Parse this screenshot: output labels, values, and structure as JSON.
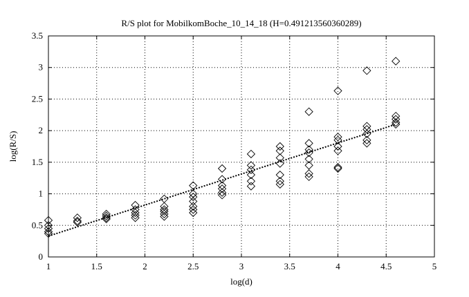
{
  "chart_data": {
    "type": "scatter",
    "title": "R/S plot for MobilkomBoche_10_14_18 (H=0.491213560360289)",
    "xlabel": "log(d)",
    "ylabel": "log(R/S)",
    "xlim": [
      1,
      5
    ],
    "ylim": [
      0,
      3.5
    ],
    "xticks": [
      "1",
      "1.5",
      "2",
      "2.5",
      "3",
      "3.5",
      "4",
      "4.5",
      "5"
    ],
    "yticks": [
      "0",
      "0.5",
      "1",
      "1.5",
      "2",
      "2.5",
      "3",
      "3.5"
    ],
    "grid": true,
    "marker": "diamond",
    "points": [
      [
        1.0,
        0.58
      ],
      [
        1.0,
        0.5
      ],
      [
        1.0,
        0.45
      ],
      [
        1.0,
        0.4
      ],
      [
        1.0,
        0.37
      ],
      [
        1.3,
        0.62
      ],
      [
        1.3,
        0.57
      ],
      [
        1.3,
        0.55
      ],
      [
        1.6,
        0.68
      ],
      [
        1.6,
        0.65
      ],
      [
        1.6,
        0.62
      ],
      [
        1.6,
        0.6
      ],
      [
        1.9,
        0.82
      ],
      [
        1.9,
        0.75
      ],
      [
        1.9,
        0.7
      ],
      [
        1.9,
        0.66
      ],
      [
        1.9,
        0.62
      ],
      [
        2.2,
        0.92
      ],
      [
        2.2,
        0.8
      ],
      [
        2.2,
        0.75
      ],
      [
        2.2,
        0.72
      ],
      [
        2.2,
        0.68
      ],
      [
        2.2,
        0.64
      ],
      [
        2.5,
        1.13
      ],
      [
        2.5,
        1.0
      ],
      [
        2.5,
        0.95
      ],
      [
        2.5,
        0.88
      ],
      [
        2.5,
        0.8
      ],
      [
        2.5,
        0.75
      ],
      [
        2.5,
        0.7
      ],
      [
        2.8,
        1.4
      ],
      [
        2.8,
        1.23
      ],
      [
        2.8,
        1.13
      ],
      [
        2.8,
        1.08
      ],
      [
        2.8,
        1.02
      ],
      [
        2.8,
        0.98
      ],
      [
        3.1,
        1.63
      ],
      [
        3.1,
        1.45
      ],
      [
        3.1,
        1.38
      ],
      [
        3.1,
        1.3
      ],
      [
        3.1,
        1.2
      ],
      [
        3.1,
        1.12
      ],
      [
        3.4,
        1.75
      ],
      [
        3.4,
        1.68
      ],
      [
        3.4,
        1.57
      ],
      [
        3.4,
        1.48
      ],
      [
        3.4,
        1.3
      ],
      [
        3.4,
        1.2
      ],
      [
        3.4,
        1.15
      ],
      [
        3.7,
        2.3
      ],
      [
        3.7,
        1.8
      ],
      [
        3.7,
        1.7
      ],
      [
        3.7,
        1.65
      ],
      [
        3.7,
        1.55
      ],
      [
        3.7,
        1.45
      ],
      [
        3.7,
        1.32
      ],
      [
        3.7,
        1.27
      ],
      [
        4.0,
        2.63
      ],
      [
        4.0,
        1.9
      ],
      [
        4.0,
        1.85
      ],
      [
        4.0,
        1.75
      ],
      [
        4.0,
        1.68
      ],
      [
        4.0,
        1.42
      ],
      [
        4.0,
        1.4
      ],
      [
        4.3,
        2.95
      ],
      [
        4.3,
        2.07
      ],
      [
        4.3,
        2.02
      ],
      [
        4.3,
        1.95
      ],
      [
        4.3,
        1.85
      ],
      [
        4.3,
        1.8
      ],
      [
        4.6,
        3.1
      ],
      [
        4.6,
        2.23
      ],
      [
        4.6,
        2.18
      ],
      [
        4.6,
        2.13
      ],
      [
        4.6,
        2.1
      ]
    ],
    "fit_line": {
      "x": [
        1.0,
        4.6
      ],
      "y": [
        0.33,
        2.1
      ]
    }
  }
}
